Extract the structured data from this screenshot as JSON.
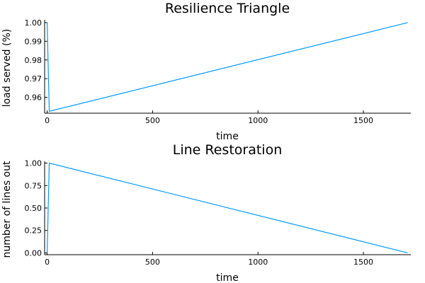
{
  "chart_data": [
    {
      "type": "line",
      "title": "Resilience Triangle",
      "xlabel": "time",
      "ylabel": "load served (%)",
      "xlim": [
        -12,
        1725
      ],
      "ylim": [
        0.9515,
        1.0015
      ],
      "xticks": [
        0,
        500,
        1000,
        1500
      ],
      "xtick_labels": [
        "0",
        "500",
        "1000",
        "1500"
      ],
      "yticks": [
        0.96,
        0.97,
        0.98,
        0.99,
        1.0
      ],
      "ytick_labels": [
        "0.96",
        "0.97",
        "0.98",
        "0.99",
        "1.00"
      ],
      "grid": false,
      "series": [
        {
          "x": [
            0,
            10,
            1710
          ],
          "y": [
            1.0,
            0.9525,
            1.0
          ],
          "color": "#009AFA"
        }
      ]
    },
    {
      "type": "line",
      "title": "Line Restoration",
      "xlabel": "time",
      "ylabel": "number of lines out",
      "xlim": [
        -12,
        1725
      ],
      "ylim": [
        -0.02,
        1.02
      ],
      "xticks": [
        0,
        500,
        1000,
        1500
      ],
      "xtick_labels": [
        "0",
        "500",
        "1000",
        "1500"
      ],
      "yticks": [
        0.0,
        0.25,
        0.5,
        0.75,
        1.0
      ],
      "ytick_labels": [
        "0.00",
        "0.25",
        "0.50",
        "0.75",
        "1.00"
      ],
      "grid": false,
      "series": [
        {
          "x": [
            0,
            10,
            1710
          ],
          "y": [
            0.0,
            1.0,
            0.0
          ],
          "color": "#009AFA"
        }
      ]
    }
  ]
}
